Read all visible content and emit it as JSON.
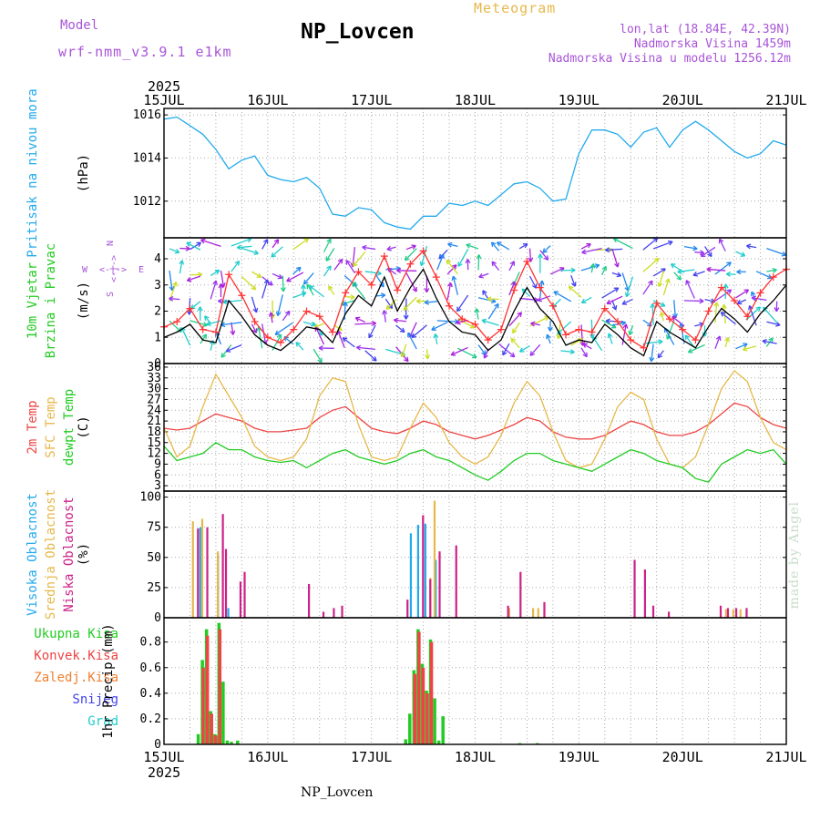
{
  "header": {
    "model_label": "Model",
    "model_version": "wrf-nmm_v3.9.1 e1km",
    "station": "NP_Lovcen",
    "meteogram": "Meteogram",
    "coords": "lon,lat (18.84E, 42.39N)",
    "elevation": "Nadmorska Visina 1459m",
    "model_elevation": "Nadmorska Visina u modelu 1256.12m"
  },
  "footer": {
    "station": "NP_Lovcen",
    "made_by": "made by Angel"
  },
  "time_axis": {
    "year": "2025",
    "labels": [
      "15JUL",
      "16JUL",
      "17JUL",
      "18JUL",
      "19JUL",
      "20JUL",
      "21JUL"
    ]
  },
  "compass": {
    "n": "N",
    "w": "W",
    "e": "E",
    "s": "S",
    "arrows": "<-|->"
  },
  "chart_data": [
    {
      "type": "line",
      "panel": "pressure",
      "ylabel": [
        "Pritisak na nivou mora",
        "(hPa)"
      ],
      "ylabel_colors": [
        "#22aaee",
        "#000000"
      ],
      "ylim": [
        1010.3,
        1016.3
      ],
      "yticks": [
        1012,
        1014,
        1016
      ],
      "grid": true,
      "series": [
        {
          "color": "#22aaee",
          "x": [
            0,
            0.125,
            0.25,
            0.375,
            0.5,
            0.625,
            0.75,
            0.875,
            1,
            1.125,
            1.25,
            1.375,
            1.5,
            1.625,
            1.75,
            1.875,
            2,
            2.125,
            2.25,
            2.375,
            2.5,
            2.625,
            2.75,
            2.875,
            3,
            3.125,
            3.25,
            3.375,
            3.5,
            3.625,
            3.75,
            3.875,
            4,
            4.125,
            4.25,
            4.375,
            4.5,
            4.625,
            4.75,
            4.875,
            5,
            5.125,
            5.25,
            5.375,
            5.5,
            5.625,
            5.75,
            5.875,
            6
          ],
          "values": [
            1015.8,
            1015.9,
            1015.5,
            1015.1,
            1014.4,
            1013.5,
            1013.9,
            1014.1,
            1013.2,
            1013.0,
            1012.9,
            1013.1,
            1012.6,
            1011.4,
            1011.3,
            1011.7,
            1011.6,
            1011.0,
            1010.8,
            1010.7,
            1011.3,
            1011.3,
            1011.9,
            1011.8,
            1012.0,
            1011.8,
            1012.3,
            1012.8,
            1012.9,
            1012.6,
            1012.0,
            1012.1,
            1014.2,
            1015.3,
            1015.3,
            1015.1,
            1014.5,
            1015.2,
            1015.4,
            1014.5,
            1015.3,
            1015.7,
            1015.3,
            1014.8,
            1014.3,
            1014.0,
            1014.2,
            1014.8,
            1014.6
          ]
        }
      ]
    },
    {
      "type": "line",
      "panel": "wind",
      "ylabel": [
        "10m Vjetar",
        "Brzina i Pravac",
        "(m/s)"
      ],
      "ylabel_colors": [
        "#22cc22",
        "#22cc22",
        "#000000"
      ],
      "ylim": [
        0,
        4.8
      ],
      "yticks": [
        0,
        1,
        2,
        3,
        4
      ],
      "grid": true,
      "series": [
        {
          "color": "#000000",
          "x": [
            0,
            0.125,
            0.25,
            0.375,
            0.5,
            0.625,
            0.75,
            0.875,
            1,
            1.125,
            1.25,
            1.375,
            1.5,
            1.625,
            1.75,
            1.875,
            2,
            2.125,
            2.25,
            2.375,
            2.5,
            2.625,
            2.75,
            2.875,
            3,
            3.125,
            3.25,
            3.375,
            3.5,
            3.625,
            3.75,
            3.875,
            4,
            4.125,
            4.25,
            4.375,
            4.5,
            4.625,
            4.75,
            4.875,
            5,
            5.125,
            5.25,
            5.375,
            5.5,
            5.625,
            5.75,
            5.875,
            6
          ],
          "values": [
            1.0,
            1.2,
            1.5,
            0.9,
            0.8,
            2.4,
            1.8,
            1.1,
            0.7,
            0.5,
            0.9,
            1.4,
            1.3,
            0.8,
            1.9,
            2.6,
            2.2,
            3.3,
            2.0,
            2.9,
            3.6,
            2.5,
            1.6,
            1.2,
            1.1,
            0.5,
            0.9,
            2.0,
            2.9,
            2.1,
            1.6,
            0.7,
            0.9,
            0.8,
            1.5,
            1.1,
            0.6,
            0.3,
            1.6,
            1.2,
            0.9,
            0.6,
            1.4,
            2.1,
            1.7,
            1.2,
            1.9,
            2.4,
            3.0
          ]
        },
        {
          "color": "#ff3333",
          "marker": "plus",
          "x": [
            0,
            0.125,
            0.25,
            0.375,
            0.5,
            0.625,
            0.75,
            0.875,
            1,
            1.125,
            1.25,
            1.375,
            1.5,
            1.625,
            1.75,
            1.875,
            2,
            2.125,
            2.25,
            2.375,
            2.5,
            2.625,
            2.75,
            2.875,
            3,
            3.125,
            3.25,
            3.375,
            3.5,
            3.625,
            3.75,
            3.875,
            4,
            4.125,
            4.25,
            4.375,
            4.5,
            4.625,
            4.75,
            4.875,
            5,
            5.125,
            5.25,
            5.375,
            5.5,
            5.625,
            5.75,
            5.875,
            6
          ],
          "values": [
            1.4,
            1.6,
            2.1,
            1.3,
            1.2,
            3.4,
            2.6,
            1.6,
            1.0,
            0.8,
            1.3,
            2.0,
            1.8,
            1.2,
            2.7,
            3.5,
            3.0,
            4.1,
            2.8,
            3.8,
            4.3,
            3.3,
            2.2,
            1.7,
            1.5,
            0.9,
            1.3,
            2.8,
            3.9,
            2.9,
            2.2,
            1.1,
            1.3,
            1.2,
            2.1,
            1.6,
            0.9,
            0.6,
            2.3,
            1.7,
            1.3,
            0.9,
            2.0,
            2.9,
            2.4,
            1.8,
            2.7,
            3.3,
            3.6
          ]
        }
      ]
    },
    {
      "type": "line",
      "panel": "temperature",
      "ylabel": [
        "2m Temp",
        "SFC Temp",
        "dewpt Temp",
        "(C)"
      ],
      "ylabel_colors": [
        "#ee4444",
        "#e6b84a",
        "#22cc22",
        "#000000"
      ],
      "ylim": [
        1.5,
        37
      ],
      "yticks": [
        3,
        6,
        9,
        12,
        15,
        18,
        21,
        24,
        27,
        30,
        33,
        36
      ],
      "grid": true,
      "series": [
        {
          "color": "#ee4444",
          "x": [
            0,
            0.125,
            0.25,
            0.375,
            0.5,
            0.625,
            0.75,
            0.875,
            1,
            1.125,
            1.25,
            1.375,
            1.5,
            1.625,
            1.75,
            1.875,
            2,
            2.125,
            2.25,
            2.375,
            2.5,
            2.625,
            2.75,
            2.875,
            3,
            3.125,
            3.25,
            3.375,
            3.5,
            3.625,
            3.75,
            3.875,
            4,
            4.125,
            4.25,
            4.375,
            4.5,
            4.625,
            4.75,
            4.875,
            5,
            5.125,
            5.25,
            5.375,
            5.5,
            5.625,
            5.75,
            5.875,
            6
          ],
          "values": [
            19,
            18.5,
            19,
            21,
            23,
            22,
            21,
            19,
            18,
            18,
            18.5,
            19,
            22,
            24,
            25,
            22,
            19,
            18,
            17.5,
            19,
            21,
            20,
            18,
            17,
            16,
            17,
            18.5,
            20,
            22,
            21,
            18,
            16.5,
            16,
            16,
            17,
            19,
            21,
            20,
            18,
            17,
            17,
            18,
            20,
            23,
            26,
            25,
            22,
            20,
            19
          ]
        },
        {
          "color": "#e6b84a",
          "x": [
            0,
            0.125,
            0.25,
            0.375,
            0.5,
            0.625,
            0.75,
            0.875,
            1,
            1.125,
            1.25,
            1.375,
            1.5,
            1.625,
            1.75,
            1.875,
            2,
            2.125,
            2.25,
            2.375,
            2.5,
            2.625,
            2.75,
            2.875,
            3,
            3.125,
            3.25,
            3.375,
            3.5,
            3.625,
            3.75,
            3.875,
            4,
            4.125,
            4.25,
            4.375,
            4.5,
            4.625,
            4.75,
            4.875,
            5,
            5.125,
            5.25,
            5.375,
            5.5,
            5.625,
            5.75,
            5.875,
            6
          ],
          "values": [
            19,
            11,
            14,
            25,
            34,
            28,
            22,
            14,
            11,
            10,
            11,
            16,
            28,
            33,
            32,
            20,
            11,
            10,
            11,
            19,
            26,
            22,
            15,
            11,
            9,
            11,
            17,
            26,
            32,
            28,
            18,
            10,
            8,
            9,
            16,
            25,
            29,
            27,
            16,
            9,
            8,
            11,
            20,
            30,
            35,
            32,
            22,
            15,
            13
          ]
        },
        {
          "color": "#22cc22",
          "x": [
            0,
            0.125,
            0.25,
            0.375,
            0.5,
            0.625,
            0.75,
            0.875,
            1,
            1.125,
            1.25,
            1.375,
            1.5,
            1.625,
            1.75,
            1.875,
            2,
            2.125,
            2.25,
            2.375,
            2.5,
            2.625,
            2.75,
            2.875,
            3,
            3.125,
            3.25,
            3.375,
            3.5,
            3.625,
            3.75,
            3.875,
            4,
            4.125,
            4.25,
            4.375,
            4.5,
            4.625,
            4.75,
            4.875,
            5,
            5.125,
            5.25,
            5.375,
            5.5,
            5.625,
            5.75,
            5.875,
            6
          ],
          "values": [
            14,
            10,
            11,
            12,
            15,
            13,
            13,
            11,
            10,
            9.5,
            10,
            8,
            10,
            12,
            13,
            11,
            10,
            9,
            10,
            12,
            13,
            11,
            10,
            8,
            6,
            4.5,
            7,
            10,
            12,
            12,
            10,
            9,
            8,
            7,
            9,
            11,
            13,
            12,
            10,
            9,
            8,
            5,
            4,
            9,
            11,
            13,
            12,
            13,
            9
          ]
        }
      ]
    },
    {
      "type": "bar",
      "panel": "clouds",
      "ylabel": [
        "Visoka Oblacnost",
        "Srednja Oblacnost",
        "Niska Oblacnost",
        "(%)"
      ],
      "ylabel_colors": [
        "#22aaee",
        "#e6b84a",
        "#cc2288",
        "#000000"
      ],
      "ylim": [
        0,
        105
      ],
      "yticks": [
        0,
        25,
        50,
        75,
        100
      ],
      "grid": true,
      "series": [
        {
          "name": "Visoka Oblacnost",
          "color": "#22aaee",
          "x": [
            0.35,
            0.52,
            0.62,
            2.38,
            2.45,
            2.52,
            2.62
          ],
          "values": [
            75,
            52,
            8,
            70,
            77,
            78,
            48
          ]
        },
        {
          "name": "Srednja Oblacnost",
          "color": "#e6b84a",
          "x": [
            0.27,
            0.36,
            0.51,
            2.56,
            2.6,
            3.32,
            3.55,
            3.6,
            5.41,
            5.48,
            5.55
          ],
          "values": [
            80,
            82,
            55,
            33,
            97,
            8,
            8,
            8,
            7,
            7,
            7
          ]
        },
        {
          "name": "Niska Oblacnost",
          "color": "#cc2288",
          "x": [
            0.31,
            0.4,
            0.55,
            0.58,
            0.72,
            0.76,
            1.38,
            1.52,
            1.62,
            1.7,
            2.33,
            2.48,
            2.55,
            2.64,
            2.8,
            3.3,
            3.42,
            3.65,
            4.52,
            4.62,
            4.7,
            4.85,
            5.35,
            5.42,
            5.5,
            5.6
          ],
          "values": [
            74,
            75,
            86,
            57,
            30,
            38,
            28,
            5,
            8,
            10,
            15,
            85,
            32,
            55,
            60,
            10,
            38,
            13,
            48,
            40,
            10,
            5,
            10,
            8,
            8,
            8
          ]
        }
      ]
    },
    {
      "type": "bar",
      "panel": "precipitation",
      "ylabel": [
        "1hr Precip (mm)"
      ],
      "legend": [
        {
          "label": "Ukupna Kisa",
          "color": "#22cc22"
        },
        {
          "label": "Konvek.Kisa",
          "color": "#ee4444"
        },
        {
          "label": "Zaledj.Kisa",
          "color": "#f08030"
        },
        {
          "label": "Snijeg",
          "color": "#4444ee"
        },
        {
          "label": "Grad",
          "color": "#22cccc"
        }
      ],
      "ylim": [
        0,
        0.99
      ],
      "yticks": [
        0,
        0.2,
        0.4,
        0.6,
        0.8
      ],
      "grid": true,
      "series": [
        {
          "name": "Ukupna Kisa",
          "color": "#22cc22",
          "x": [
            0.33,
            0.37,
            0.41,
            0.45,
            0.49,
            0.53,
            0.57,
            0.61,
            0.65,
            0.71,
            2.33,
            2.37,
            2.41,
            2.45,
            2.49,
            2.53,
            2.57,
            2.61,
            2.65,
            2.69,
            3.43,
            3.6,
            4.0
          ],
          "values": [
            0.08,
            0.66,
            0.9,
            0.26,
            0.08,
            0.95,
            0.49,
            0.03,
            0.02,
            0.03,
            0.04,
            0.24,
            0.58,
            0.9,
            0.63,
            0.42,
            0.82,
            0.36,
            0.03,
            0.22,
            0.01,
            0.01,
            0.005
          ]
        },
        {
          "name": "Konvek.Kisa",
          "color": "#ee4444",
          "x": [
            0.37,
            0.41,
            0.45,
            0.49,
            0.53,
            2.41,
            2.45,
            2.49,
            2.53,
            2.57
          ],
          "values": [
            0.6,
            0.85,
            0.24,
            0.07,
            0.9,
            0.55,
            0.88,
            0.6,
            0.4,
            0.8
          ]
        }
      ]
    }
  ]
}
